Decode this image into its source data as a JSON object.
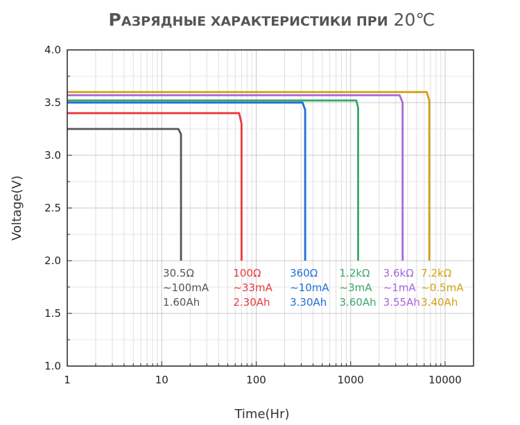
{
  "chart_data": {
    "type": "line",
    "title": "Разрядные характеристики при 20℃",
    "xlabel": "Time(Hr)",
    "ylabel": "Voltage(V)",
    "x_scale": "log",
    "xlim": [
      1,
      20000
    ],
    "ylim": [
      1.0,
      4.0
    ],
    "x_ticks": [
      1,
      10,
      100,
      1000,
      10000
    ],
    "x_tick_labels": [
      "1",
      "10",
      "100",
      "1000",
      "10000"
    ],
    "y_ticks": [
      1.0,
      1.5,
      2.0,
      2.5,
      3.0,
      3.5,
      4.0
    ],
    "y_tick_labels": [
      "1.0",
      "1.5",
      "2.0",
      "2.5",
      "3.0",
      "3.5",
      "4.0"
    ],
    "grid": true,
    "series": [
      {
        "color": "#555555",
        "x": [
          1,
          15,
          16,
          16
        ],
        "y": [
          3.25,
          3.25,
          3.2,
          2.0
        ],
        "annotation": [
          "30.5Ω",
          "~100mA",
          "1.60Ah"
        ]
      },
      {
        "color": "#e8383d",
        "x": [
          1,
          66,
          70,
          70
        ],
        "y": [
          3.4,
          3.4,
          3.3,
          2.0
        ],
        "annotation": [
          "100Ω",
          "~33mA",
          "2.30Ah"
        ]
      },
      {
        "color": "#1f6fd6",
        "x": [
          1,
          310,
          330,
          330
        ],
        "y": [
          3.5,
          3.5,
          3.43,
          2.0
        ],
        "annotation": [
          "360Ω",
          "~10mA",
          "3.30Ah"
        ]
      },
      {
        "color": "#3aa66b",
        "x": [
          1,
          1150,
          1200,
          1200
        ],
        "y": [
          3.52,
          3.52,
          3.45,
          2.0
        ],
        "annotation": [
          "1.2kΩ",
          "~3mA",
          "3.60Ah"
        ]
      },
      {
        "color": "#a866d8",
        "x": [
          1,
          3300,
          3550,
          3550
        ],
        "y": [
          3.57,
          3.57,
          3.5,
          2.0
        ],
        "annotation": [
          "3.6kΩ",
          "~1mA",
          "3.55Ah"
        ]
      },
      {
        "color": "#d4a012",
        "x": [
          1,
          6400,
          6800,
          6800
        ],
        "y": [
          3.6,
          3.6,
          3.52,
          2.0
        ],
        "annotation": [
          "7.2kΩ",
          "~0.5mA",
          "3.40Ah"
        ]
      }
    ]
  }
}
